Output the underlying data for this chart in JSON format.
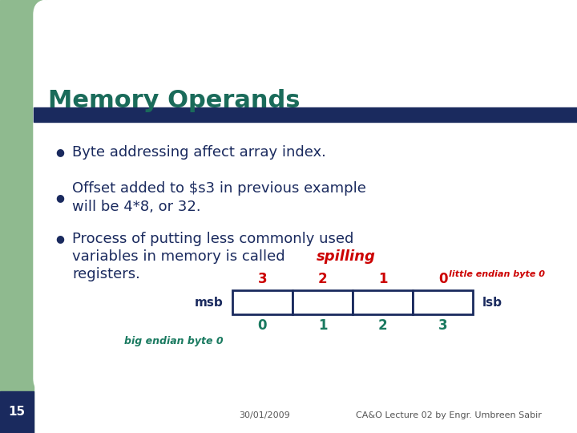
{
  "title": "Memory Operands",
  "title_color": "#1a6b5a",
  "title_fontsize": 22,
  "bg_color": "#ffffff",
  "left_bar_color": "#8fba8f",
  "top_corner_color": "#8fba8f",
  "divider_color": "#1a2a5e",
  "bullet_color": "#1a2a5e",
  "text_color": "#1a2a5e",
  "spilling_color": "#cc0000",
  "slide_number": "15",
  "slide_number_color": "#ffffff",
  "slide_number_bg": "#1a2a5e",
  "little_endian_label": "little endian byte 0",
  "little_endian_color": "#cc0000",
  "big_endian_label": "big endian byte 0",
  "big_endian_color": "#1a7a60",
  "msb_label": "msb",
  "lsb_label": "lsb",
  "top_numbers": [
    "3",
    "2",
    "1",
    "0"
  ],
  "top_numbers_color": "#cc0000",
  "bottom_numbers": [
    "0",
    "1",
    "2",
    "3"
  ],
  "bottom_numbers_color": "#1a7a60",
  "box_color": "#ffffff",
  "box_edge_color": "#1a2a5e",
  "footer_date": "30/01/2009",
  "footer_text": "CA&O Lecture 02 by Engr. Umbreen Sabir",
  "footer_color": "#555555",
  "bullet_fontsize": 13,
  "bullet1": "Byte addressing affect array index.",
  "bullet2a": "Offset added to $s3 in previous example",
  "bullet2b": "will be 4*8, or 32.",
  "bullet3a": "Process of putting less commonly used",
  "bullet3b": "variables in memory is called ",
  "bullet3b_spill": "spilling",
  "bullet3c": "registers."
}
